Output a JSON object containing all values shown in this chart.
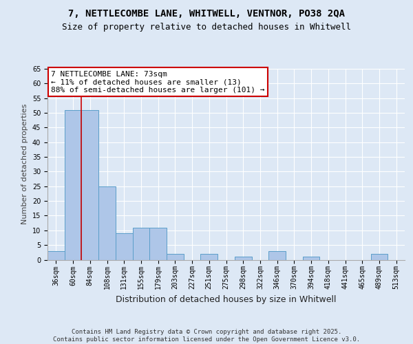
{
  "title1": "7, NETTLECOMBE LANE, WHITWELL, VENTNOR, PO38 2QA",
  "title2": "Size of property relative to detached houses in Whitwell",
  "xlabel": "Distribution of detached houses by size in Whitwell",
  "ylabel": "Number of detached properties",
  "categories": [
    "36sqm",
    "60sqm",
    "84sqm",
    "108sqm",
    "131sqm",
    "155sqm",
    "179sqm",
    "203sqm",
    "227sqm",
    "251sqm",
    "275sqm",
    "298sqm",
    "322sqm",
    "346sqm",
    "370sqm",
    "394sqm",
    "418sqm",
    "441sqm",
    "465sqm",
    "489sqm",
    "513sqm"
  ],
  "values": [
    3,
    51,
    51,
    25,
    9,
    11,
    11,
    2,
    0,
    2,
    0,
    1,
    0,
    3,
    0,
    1,
    0,
    0,
    0,
    2,
    0
  ],
  "bar_color": "#aec6e8",
  "bar_edge_color": "#5a9ec9",
  "vline_x": 1.5,
  "vline_color": "#cc0000",
  "annotation_box_text": "7 NETTLECOMBE LANE: 73sqm\n← 11% of detached houses are smaller (13)\n88% of semi-detached houses are larger (101) →",
  "annotation_box_color": "#cc0000",
  "annotation_box_bg": "#ffffff",
  "ylim": [
    0,
    65
  ],
  "yticks": [
    0,
    5,
    10,
    15,
    20,
    25,
    30,
    35,
    40,
    45,
    50,
    55,
    60,
    65
  ],
  "footer_text": "Contains HM Land Registry data © Crown copyright and database right 2025.\nContains public sector information licensed under the Open Government Licence v3.0.",
  "background_color": "#dde8f5",
  "plot_bg_color": "#dde8f5",
  "title_fontsize": 10,
  "subtitle_fontsize": 9,
  "axis_label_fontsize": 9,
  "ylabel_fontsize": 8,
  "tick_fontsize": 7,
  "annotation_fontsize": 8,
  "footer_fontsize": 6.5
}
